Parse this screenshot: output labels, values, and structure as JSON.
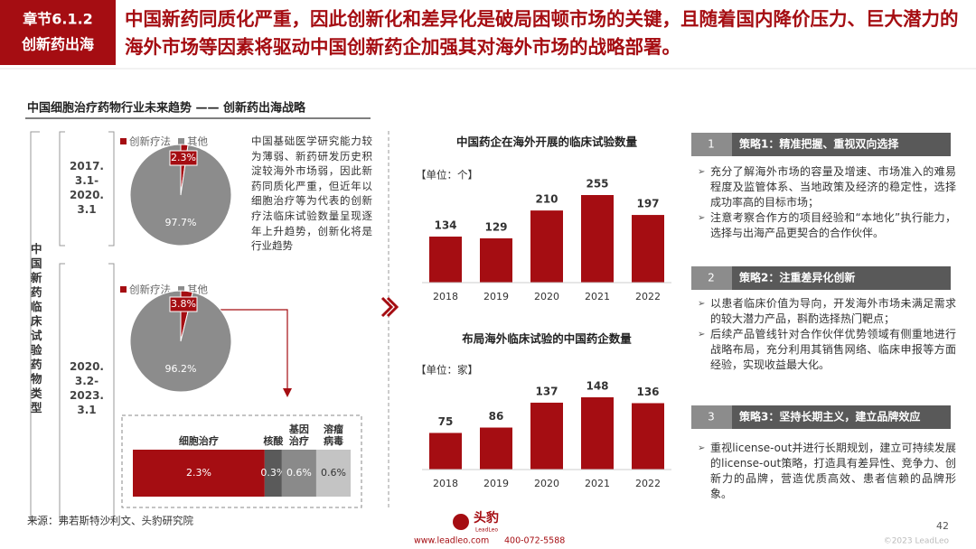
{
  "header": {
    "badge": [
      "章节6.1.2",
      "创新药出海"
    ],
    "headline": "中国新药同质化严重，因此创新化和差异化是破局困顿市场的关键，且随着国内降价压力、巨大潜力的海外市场等因素将驱动中国创新药企加强其对海外市场的战略部署。"
  },
  "section_title": "中国细胞治疗药物行业未来趋势 —— 创新药出海战略",
  "side_label": "中国新药临床试验药物类型",
  "periods": [
    [
      "2017.",
      "3.1-",
      "2020.",
      "3.1"
    ],
    [
      "2020.",
      "3.2-",
      "2023.",
      "3.1"
    ]
  ],
  "note": "中国基础医学研究能力较为薄弱、新药研发历史积淀较海外市场弱，因此新药同质化严重，但近年以细胞治疗等为代表的创新疗法临床试验数量呈现逐年上升趋势，创新化将是行业趋势",
  "chart_data": [
    {
      "type": "pie",
      "categories": [
        "创新疗法",
        "其他"
      ],
      "values": [
        2.3,
        97.7
      ],
      "value_labels": [
        "2.3%",
        "97.7%"
      ],
      "colors": [
        "#a50d12",
        "#8c8c8c"
      ]
    },
    {
      "type": "pie",
      "categories": [
        "创新疗法",
        "其他"
      ],
      "values": [
        3.8,
        96.2
      ],
      "value_labels": [
        "3.8%",
        "96.2%"
      ],
      "colors": [
        "#a50d12",
        "#8c8c8c"
      ]
    },
    {
      "type": "stacked-bar",
      "orientation": "horizontal",
      "series": [
        {
          "name": "细胞治疗",
          "color": "#a50d12",
          "values": [
            2.3
          ],
          "value_labels": [
            "2.3%"
          ]
        },
        {
          "name": "核酸",
          "color": "#5a5a5a",
          "values": [
            0.3
          ],
          "value_labels": [
            "0.3%"
          ]
        },
        {
          "name": "基因治疗",
          "color": "#8a8a8a",
          "values": [
            0.6
          ],
          "value_labels": [
            "0.6%"
          ]
        },
        {
          "name": "溶瘤病毒",
          "color": "#c4c4c4",
          "values": [
            0.6
          ],
          "value_labels": [
            "0.6%"
          ]
        }
      ]
    },
    {
      "type": "bar",
      "title": "中国药企在海外开展的临床试验数量",
      "unit": "【单位：个】",
      "categories": [
        "2018",
        "2019",
        "2020",
        "2021",
        "2022"
      ],
      "values": [
        134,
        129,
        210,
        255,
        197
      ],
      "color": "#a50d12"
    },
    {
      "type": "bar",
      "title": "布局海外临床试验的中国药企数量",
      "unit": "【单位：家】",
      "categories": [
        "2018",
        "2019",
        "2020",
        "2021",
        "2022"
      ],
      "values": [
        75,
        86,
        137,
        148,
        136
      ],
      "color": "#a50d12"
    }
  ],
  "strategies": [
    {
      "number": "1",
      "title": "策略1：精准把握、重视双向选择",
      "bullets": [
        "充分了解海外市场的容量及增速、市场准入的难易程度及监管体系、当地政策及经济的稳定性，选择成功率高的目标市场；",
        "注意考察合作方的项目经验和“本地化”执行能力，选择与出海产品更契合的合作伙伴。"
      ]
    },
    {
      "number": "2",
      "title": "策略2：注重差异化创新",
      "bullets": [
        "以患者临床价值为导向，开发海外市场未满足需求的较大潜力产品，斟酌选择热门靶点；",
        "后续产品管线针对合作伙伴优势领域有侧重地进行战略布局，充分利用其销售网络、临床申报等方面经验，实现收益最大化。"
      ]
    },
    {
      "number": "3",
      "title": "策略3：坚持长期主义，建立品牌效应",
      "bullets": [
        "重视license-out并进行长期规划，建立可持续发展的license-out策略，打造具有差异性、竞争力、创新力的品牌，营造优质高效、患者信赖的品牌形象。"
      ]
    }
  ],
  "footer": {
    "source": "来源：弗若斯特沙利文、头豹研究院",
    "page": "42",
    "brand": "头豹",
    "brand_en": "LeadLeo",
    "website": "www.leadleo.com",
    "phone": "400-072-5588",
    "copyright": "©2023 LeadLeo"
  }
}
